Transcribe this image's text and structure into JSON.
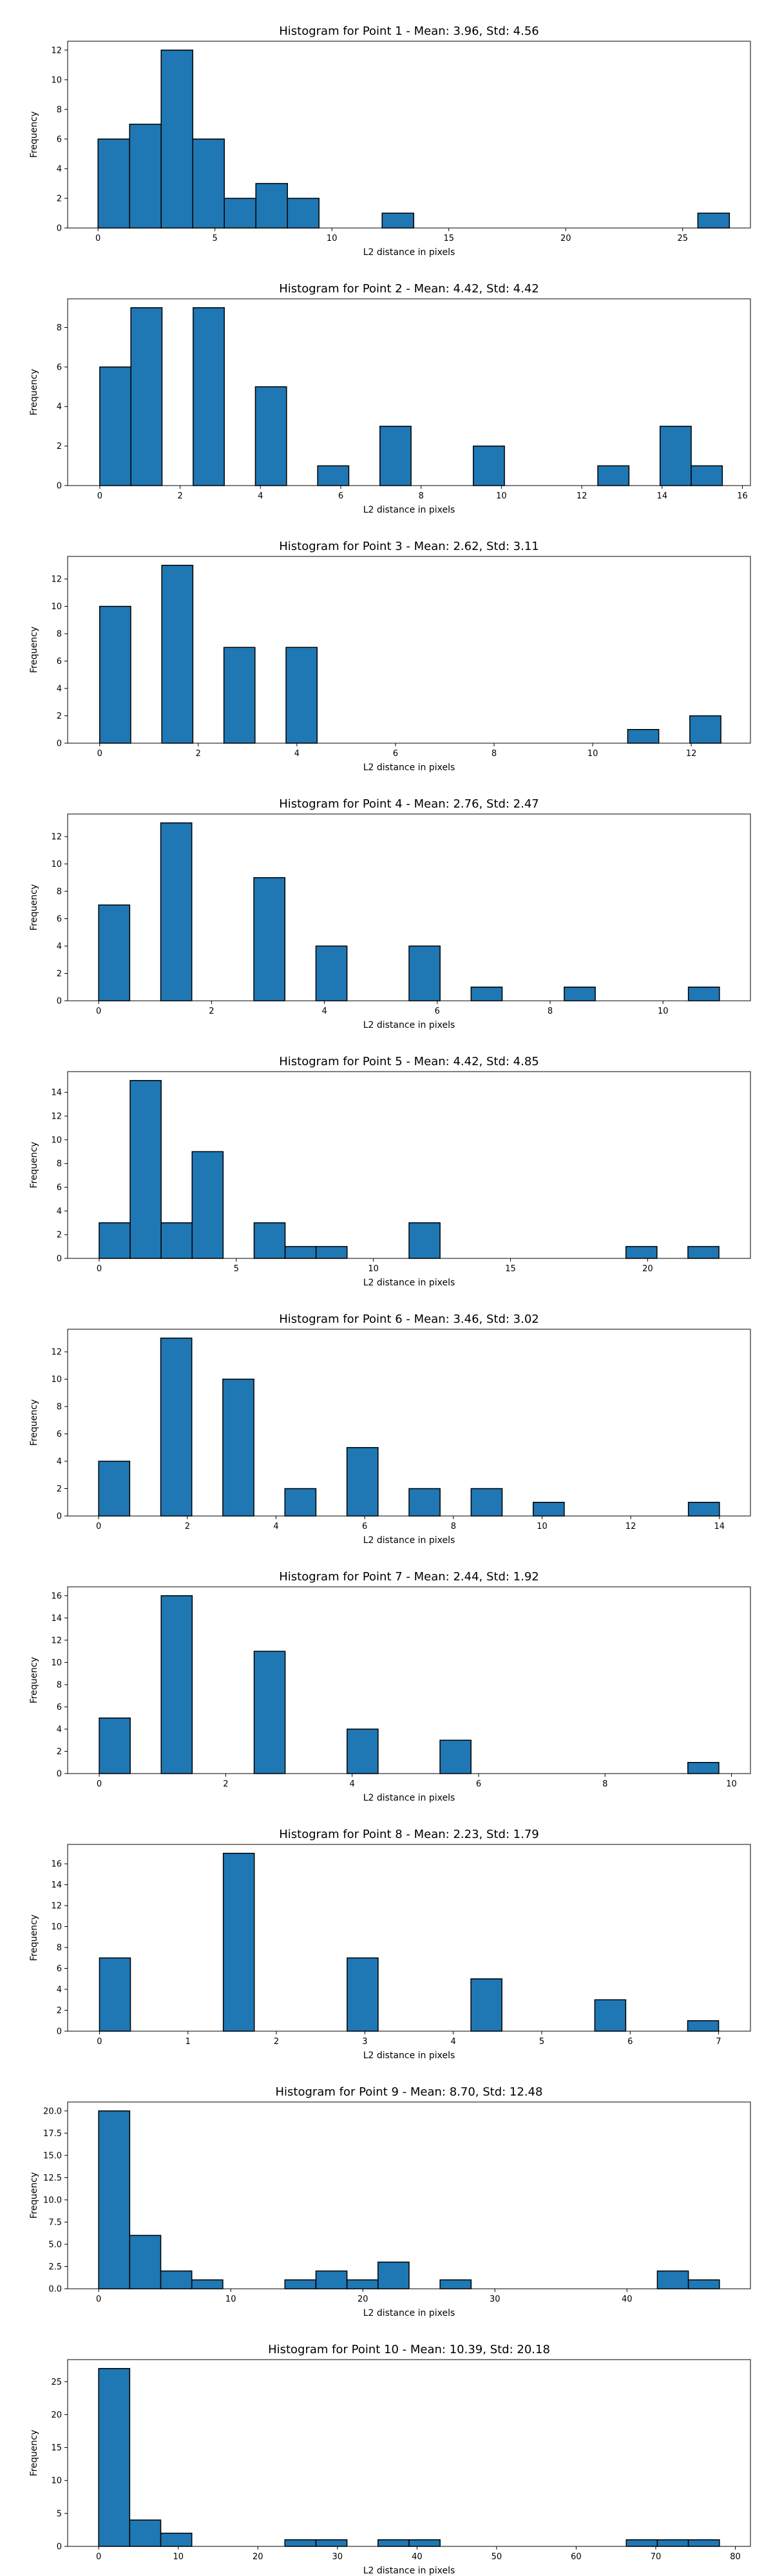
{
  "chart_data": [
    {
      "type": "bar",
      "title": "Histogram for Point 1 - Mean: 3.96, Std: 4.56",
      "xlabel": "L2 distance in pixels",
      "ylabel": "Frequency",
      "xlim": [
        -1.3,
        27.9
      ],
      "ylim": [
        0,
        12.6
      ],
      "xticks": [
        0,
        5,
        10,
        15,
        20,
        25
      ],
      "yticks": [
        0,
        2,
        4,
        6,
        8,
        10,
        12
      ],
      "bins": [
        {
          "x0": 0.0,
          "x1": 1.35,
          "count": 6
        },
        {
          "x0": 1.35,
          "x1": 2.7,
          "count": 7
        },
        {
          "x0": 2.7,
          "x1": 4.05,
          "count": 12
        },
        {
          "x0": 4.05,
          "x1": 5.4,
          "count": 6
        },
        {
          "x0": 5.4,
          "x1": 6.75,
          "count": 2
        },
        {
          "x0": 6.75,
          "x1": 8.1,
          "count": 3
        },
        {
          "x0": 8.1,
          "x1": 9.45,
          "count": 2
        },
        {
          "x0": 12.15,
          "x1": 13.5,
          "count": 1
        },
        {
          "x0": 25.65,
          "x1": 27.0,
          "count": 1
        }
      ]
    },
    {
      "type": "bar",
      "title": "Histogram for Point 2 - Mean: 4.42, Std: 4.42",
      "xlabel": "L2 distance in pixels",
      "ylabel": "Frequency",
      "xlim": [
        -0.8,
        16.2
      ],
      "ylim": [
        0,
        9.45
      ],
      "xticks": [
        0,
        2,
        4,
        6,
        8,
        10,
        12,
        14,
        16
      ],
      "yticks": [
        0,
        2,
        4,
        6,
        8
      ],
      "bins": [
        {
          "x0": 0.0,
          "x1": 0.775,
          "count": 6
        },
        {
          "x0": 0.775,
          "x1": 1.55,
          "count": 9
        },
        {
          "x0": 2.325,
          "x1": 3.1,
          "count": 9
        },
        {
          "x0": 3.875,
          "x1": 4.65,
          "count": 5
        },
        {
          "x0": 5.425,
          "x1": 6.2,
          "count": 1
        },
        {
          "x0": 6.975,
          "x1": 7.75,
          "count": 3
        },
        {
          "x0": 9.3,
          "x1": 10.075,
          "count": 2
        },
        {
          "x0": 12.4,
          "x1": 13.175,
          "count": 1
        },
        {
          "x0": 13.95,
          "x1": 14.725,
          "count": 3
        },
        {
          "x0": 14.725,
          "x1": 15.5,
          "count": 1
        }
      ]
    },
    {
      "type": "bar",
      "title": "Histogram for Point 3 - Mean: 2.62, Std: 3.11",
      "xlabel": "L2 distance in pixels",
      "ylabel": "Frequency",
      "xlim": [
        -0.65,
        13.2
      ],
      "ylim": [
        0,
        13.65
      ],
      "xticks": [
        0,
        2,
        4,
        6,
        8,
        10,
        12
      ],
      "yticks": [
        0,
        2,
        4,
        6,
        8,
        10,
        12
      ],
      "bins": [
        {
          "x0": 0.0,
          "x1": 0.63,
          "count": 10
        },
        {
          "x0": 1.26,
          "x1": 1.89,
          "count": 13
        },
        {
          "x0": 2.52,
          "x1": 3.15,
          "count": 7
        },
        {
          "x0": 3.78,
          "x1": 4.41,
          "count": 7
        },
        {
          "x0": 10.71,
          "x1": 11.34,
          "count": 1
        },
        {
          "x0": 11.97,
          "x1": 12.6,
          "count": 2
        }
      ]
    },
    {
      "type": "bar",
      "title": "Histogram for Point 4 - Mean: 2.76, Std: 2.47",
      "xlabel": "L2 distance in pixels",
      "ylabel": "Frequency",
      "xlim": [
        -0.55,
        11.55
      ],
      "ylim": [
        0,
        13.65
      ],
      "xticks": [
        0,
        2,
        4,
        6,
        8,
        10
      ],
      "yticks": [
        0,
        2,
        4,
        6,
        8,
        10,
        12
      ],
      "bins": [
        {
          "x0": 0.0,
          "x1": 0.55,
          "count": 7
        },
        {
          "x0": 1.1,
          "x1": 1.65,
          "count": 13
        },
        {
          "x0": 2.75,
          "x1": 3.3,
          "count": 9
        },
        {
          "x0": 3.85,
          "x1": 4.4,
          "count": 4
        },
        {
          "x0": 5.5,
          "x1": 6.05,
          "count": 4
        },
        {
          "x0": 6.6,
          "x1": 7.15,
          "count": 1
        },
        {
          "x0": 8.25,
          "x1": 8.8,
          "count": 1
        },
        {
          "x0": 10.45,
          "x1": 11.0,
          "count": 1
        }
      ]
    },
    {
      "type": "bar",
      "title": "Histogram for Point 5 - Mean: 4.42, Std: 4.85",
      "xlabel": "L2 distance in pixels",
      "ylabel": "Frequency",
      "xlim": [
        -1.15,
        23.75
      ],
      "ylim": [
        0,
        15.75
      ],
      "xticks": [
        0,
        5,
        10,
        15,
        20
      ],
      "yticks": [
        0,
        2,
        4,
        6,
        8,
        10,
        12,
        14
      ],
      "bins": [
        {
          "x0": 0.0,
          "x1": 1.13,
          "count": 3
        },
        {
          "x0": 1.13,
          "x1": 2.26,
          "count": 15
        },
        {
          "x0": 2.26,
          "x1": 3.39,
          "count": 3
        },
        {
          "x0": 3.39,
          "x1": 4.52,
          "count": 9
        },
        {
          "x0": 5.65,
          "x1": 6.78,
          "count": 3
        },
        {
          "x0": 6.78,
          "x1": 7.91,
          "count": 1
        },
        {
          "x0": 7.91,
          "x1": 9.04,
          "count": 1
        },
        {
          "x0": 11.3,
          "x1": 12.43,
          "count": 3
        },
        {
          "x0": 19.21,
          "x1": 20.34,
          "count": 1
        },
        {
          "x0": 21.47,
          "x1": 22.6,
          "count": 1
        }
      ]
    },
    {
      "type": "bar",
      "title": "Histogram for Point 6 - Mean: 3.46, Std: 3.02",
      "xlabel": "L2 distance in pixels",
      "ylabel": "Frequency",
      "xlim": [
        -0.7,
        14.7
      ],
      "ylim": [
        0,
        13.65
      ],
      "xticks": [
        0,
        2,
        4,
        6,
        8,
        10,
        12,
        14
      ],
      "yticks": [
        0,
        2,
        4,
        6,
        8,
        10,
        12
      ],
      "bins": [
        {
          "x0": 0.0,
          "x1": 0.7,
          "count": 4
        },
        {
          "x0": 1.4,
          "x1": 2.1,
          "count": 13
        },
        {
          "x0": 2.8,
          "x1": 3.5,
          "count": 10
        },
        {
          "x0": 4.2,
          "x1": 4.9,
          "count": 2
        },
        {
          "x0": 5.6,
          "x1": 6.3,
          "count": 5
        },
        {
          "x0": 7.0,
          "x1": 7.7,
          "count": 2
        },
        {
          "x0": 8.4,
          "x1": 9.1,
          "count": 2
        },
        {
          "x0": 9.8,
          "x1": 10.5,
          "count": 1
        },
        {
          "x0": 13.3,
          "x1": 14.0,
          "count": 1
        }
      ]
    },
    {
      "type": "bar",
      "title": "Histogram for Point 7 - Mean: 2.44, Std: 1.92",
      "xlabel": "L2 distance in pixels",
      "ylabel": "Frequency",
      "xlim": [
        -0.5,
        10.3
      ],
      "ylim": [
        0,
        16.8
      ],
      "xticks": [
        0,
        2,
        4,
        6,
        8,
        10
      ],
      "yticks": [
        0,
        2,
        4,
        6,
        8,
        10,
        12,
        14,
        16
      ],
      "bins": [
        {
          "x0": 0.0,
          "x1": 0.49,
          "count": 5
        },
        {
          "x0": 0.98,
          "x1": 1.47,
          "count": 16
        },
        {
          "x0": 2.45,
          "x1": 2.94,
          "count": 11
        },
        {
          "x0": 3.92,
          "x1": 4.41,
          "count": 4
        },
        {
          "x0": 5.39,
          "x1": 5.88,
          "count": 3
        },
        {
          "x0": 9.31,
          "x1": 9.8,
          "count": 1
        }
      ]
    },
    {
      "type": "bar",
      "title": "Histogram for Point 8 - Mean: 2.23, Std: 1.79",
      "xlabel": "L2 distance in pixels",
      "ylabel": "Frequency",
      "xlim": [
        -0.36,
        7.36
      ],
      "ylim": [
        0,
        17.85
      ],
      "xticks": [
        0,
        1,
        2,
        3,
        4,
        5,
        6,
        7
      ],
      "yticks": [
        0,
        2,
        4,
        6,
        8,
        10,
        12,
        14,
        16
      ],
      "bins": [
        {
          "x0": 0.0,
          "x1": 0.35,
          "count": 7
        },
        {
          "x0": 1.4,
          "x1": 1.75,
          "count": 17
        },
        {
          "x0": 2.8,
          "x1": 3.15,
          "count": 7
        },
        {
          "x0": 4.2,
          "x1": 4.55,
          "count": 5
        },
        {
          "x0": 5.6,
          "x1": 5.95,
          "count": 3
        },
        {
          "x0": 6.65,
          "x1": 7.0,
          "count": 1
        }
      ]
    },
    {
      "type": "bar",
      "title": "Histogram for Point 9 - Mean: 8.70, Std: 12.48",
      "xlabel": "L2 distance in pixels",
      "ylabel": "Frequency",
      "xlim": [
        -2.35,
        49.35
      ],
      "ylim": [
        0,
        21.0
      ],
      "xticks": [
        0,
        10,
        20,
        30,
        40
      ],
      "xtick_labels": [
        "0",
        "10",
        "20",
        "30",
        "40"
      ],
      "yticks": [
        0,
        2.5,
        5.0,
        7.5,
        10.0,
        12.5,
        15.0,
        17.5,
        20.0
      ],
      "ytick_labels": [
        "0.0",
        "2.5",
        "5.0",
        "7.5",
        "10.0",
        "12.5",
        "15.0",
        "17.5",
        "20.0"
      ],
      "bins": [
        {
          "x0": 0.0,
          "x1": 2.35,
          "count": 20
        },
        {
          "x0": 2.35,
          "x1": 4.7,
          "count": 6
        },
        {
          "x0": 4.7,
          "x1": 7.05,
          "count": 2
        },
        {
          "x0": 7.05,
          "x1": 9.4,
          "count": 1
        },
        {
          "x0": 14.1,
          "x1": 16.45,
          "count": 1
        },
        {
          "x0": 16.45,
          "x1": 18.8,
          "count": 2
        },
        {
          "x0": 18.8,
          "x1": 21.15,
          "count": 1
        },
        {
          "x0": 21.15,
          "x1": 23.5,
          "count": 3
        },
        {
          "x0": 25.85,
          "x1": 28.2,
          "count": 1
        },
        {
          "x0": 42.3,
          "x1": 44.65,
          "count": 2
        },
        {
          "x0": 44.65,
          "x1": 47.0,
          "count": 1
        }
      ]
    },
    {
      "type": "bar",
      "title": "Histogram for Point 10 - Mean: 10.39, Std: 20.18",
      "xlabel": "L2 distance in pixels",
      "ylabel": "Frequency",
      "xlim": [
        -3.9,
        81.9
      ],
      "ylim": [
        0,
        28.35
      ],
      "xticks": [
        0,
        10,
        20,
        30,
        40,
        50,
        60,
        70,
        80
      ],
      "yticks": [
        0,
        5,
        10,
        15,
        20,
        25
      ],
      "bins": [
        {
          "x0": 0.0,
          "x1": 3.9,
          "count": 27
        },
        {
          "x0": 3.9,
          "x1": 7.8,
          "count": 4
        },
        {
          "x0": 7.8,
          "x1": 11.7,
          "count": 2
        },
        {
          "x0": 23.4,
          "x1": 27.3,
          "count": 1
        },
        {
          "x0": 27.3,
          "x1": 31.2,
          "count": 1
        },
        {
          "x0": 35.1,
          "x1": 39.0,
          "count": 1
        },
        {
          "x0": 39.0,
          "x1": 42.9,
          "count": 1
        },
        {
          "x0": 66.3,
          "x1": 70.2,
          "count": 1
        },
        {
          "x0": 70.2,
          "x1": 74.1,
          "count": 1
        },
        {
          "x0": 74.1,
          "x1": 78.0,
          "count": 1
        }
      ]
    }
  ]
}
